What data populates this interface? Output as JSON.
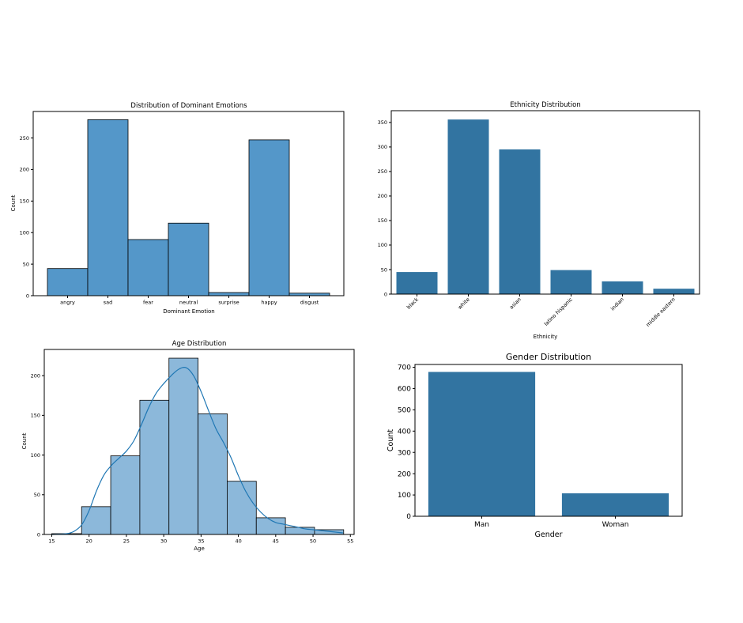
{
  "chart_data": [
    {
      "id": "emotion",
      "type": "bar",
      "title": "Distribution of Dominant Emotions",
      "xlabel": "Dominant Emotion",
      "ylabel": "Count",
      "categories": [
        "angry",
        "sad",
        "fear",
        "neutral",
        "surprise",
        "happy",
        "disgust"
      ],
      "values": [
        43,
        279,
        89,
        115,
        5,
        247,
        4
      ],
      "ylim": [
        0,
        292
      ],
      "yticks": [
        0,
        50,
        100,
        150,
        200,
        250
      ],
      "bar_color": "#5497c9",
      "bar_edge": "#000000"
    },
    {
      "id": "ethnicity",
      "type": "bar",
      "title": "Ethnicity Distribution",
      "xlabel": "Ethnicity",
      "ylabel": "",
      "categories": [
        "black",
        "white",
        "asian",
        "latino hispanic",
        "indian",
        "middle eastern"
      ],
      "values": [
        45,
        356,
        295,
        49,
        26,
        11
      ],
      "ylim": [
        0,
        374
      ],
      "yticks": [
        0,
        50,
        100,
        150,
        200,
        250,
        300,
        350
      ],
      "bar_color": "#3274a1"
    },
    {
      "id": "age",
      "type": "bar",
      "title": "Age Distribution",
      "xlabel": "Age",
      "ylabel": "Count",
      "bins": [
        {
          "start": 15.0,
          "end": 19.0,
          "count": 1
        },
        {
          "start": 19.0,
          "end": 22.9,
          "count": 35
        },
        {
          "start": 22.9,
          "end": 26.8,
          "count": 99
        },
        {
          "start": 26.8,
          "end": 30.7,
          "count": 169
        },
        {
          "start": 30.7,
          "end": 34.6,
          "count": 222
        },
        {
          "start": 34.6,
          "end": 38.5,
          "count": 152
        },
        {
          "start": 38.5,
          "end": 42.4,
          "count": 67
        },
        {
          "start": 42.4,
          "end": 46.3,
          "count": 21
        },
        {
          "start": 46.3,
          "end": 50.2,
          "count": 9
        },
        {
          "start": 50.2,
          "end": 54.1,
          "count": 6
        }
      ],
      "kde": {
        "x": [
          15,
          17,
          18,
          19,
          20,
          21,
          22,
          23,
          24,
          25,
          26,
          27,
          28,
          29,
          30,
          31,
          32,
          33,
          34,
          35,
          36,
          37,
          38,
          39,
          40,
          41,
          42,
          43,
          44,
          45,
          46,
          47,
          48,
          49,
          50,
          51,
          52,
          53,
          54
        ],
        "y": [
          0,
          1,
          4,
          12,
          30,
          55,
          75,
          87,
          96,
          105,
          118,
          138,
          160,
          178,
          190,
          200,
          208,
          210,
          200,
          180,
          156,
          133,
          116,
          97,
          74,
          54,
          39,
          28,
          20,
          15,
          13,
          11,
          9,
          7,
          6,
          5,
          4,
          3,
          2
        ]
      },
      "xlim": [
        14,
        55.5
      ],
      "ylim": [
        0,
        233
      ],
      "xticks": [
        15,
        20,
        25,
        30,
        35,
        40,
        45,
        50,
        55
      ],
      "yticks": [
        0,
        50,
        100,
        150,
        200
      ],
      "bar_color": "#8cb8da",
      "bar_edge": "#000000",
      "line_color": "#1f77b4"
    },
    {
      "id": "gender",
      "type": "bar",
      "title": "Gender Distribution",
      "xlabel": "Gender",
      "ylabel": "Count",
      "categories": [
        "Man",
        "Woman"
      ],
      "values": [
        678,
        108
      ],
      "ylim": [
        0,
        713
      ],
      "yticks": [
        0,
        100,
        200,
        300,
        400,
        500,
        600,
        700
      ],
      "bar_color": "#3274a1"
    }
  ]
}
